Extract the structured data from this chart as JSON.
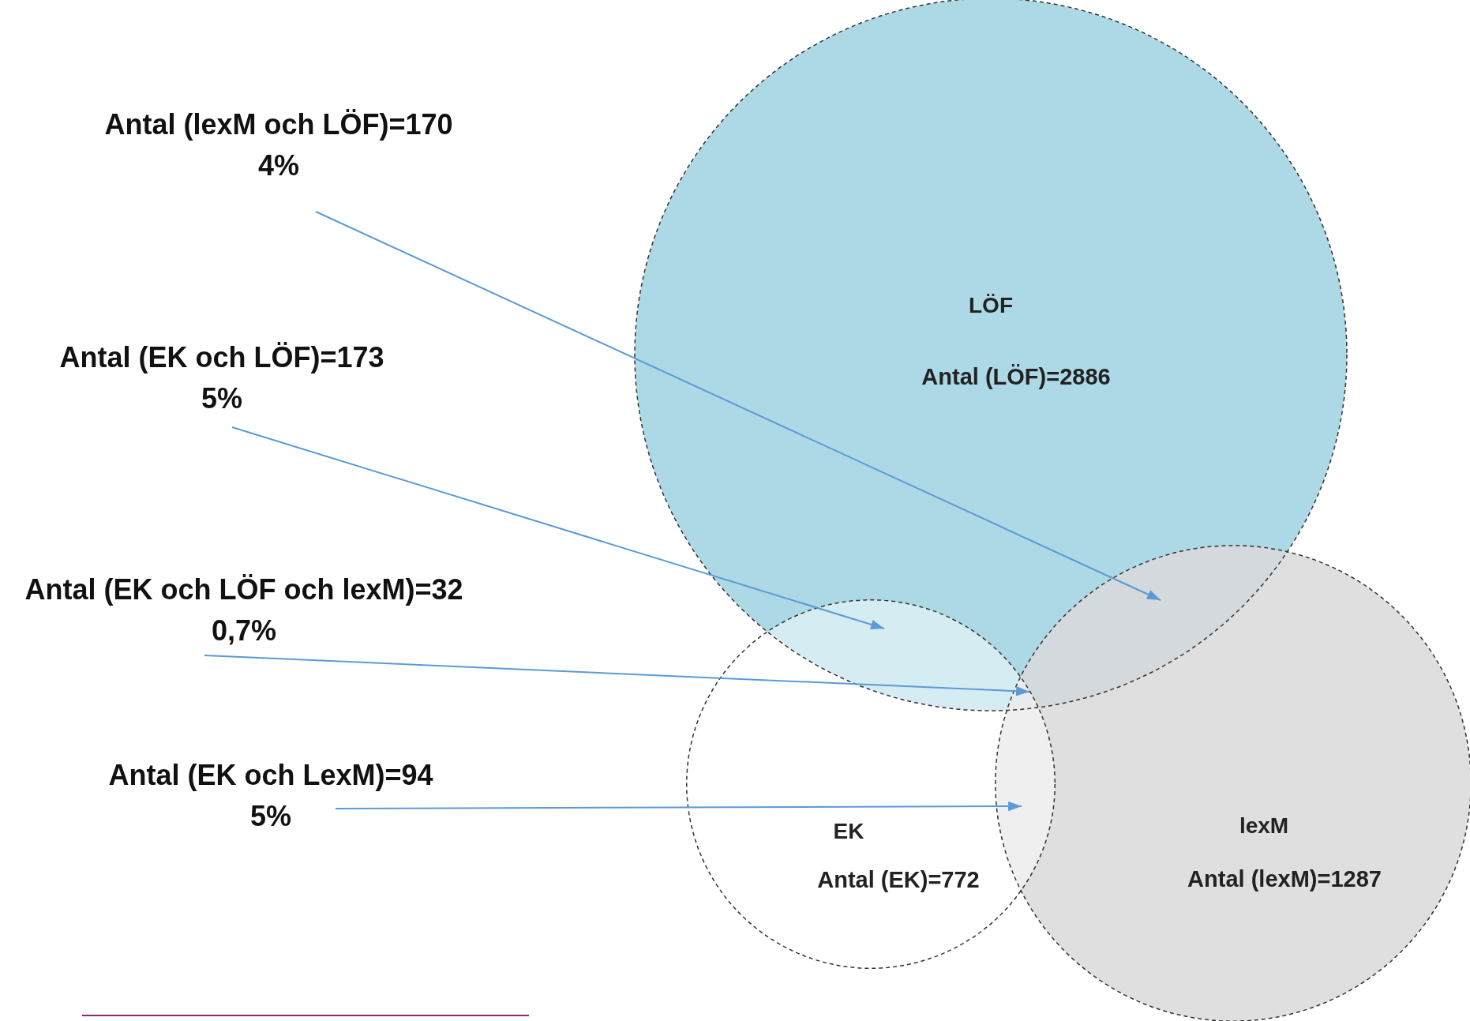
{
  "chart_data": {
    "type": "other",
    "categories": [
      "LÖF",
      "EK",
      "lexM"
    ],
    "values": [
      2886,
      772,
      1287
    ],
    "value_labels": [
      "Antal (LÖF)=2886",
      "Antal (EK)=772",
      "Antal (lexM)=1287"
    ],
    "colors": [
      "#add8e6",
      "#ffffff",
      "#d9d9d9"
    ],
    "annotations": [
      "Antal (lexM och LÖF)=170\n4%",
      "Antal (EK och LÖF)=173\n5%",
      "Antal (EK och LÖF och lexM)=32\n0,7%",
      "Antal (EK och LexM)=94\n5%"
    ]
  }
}
